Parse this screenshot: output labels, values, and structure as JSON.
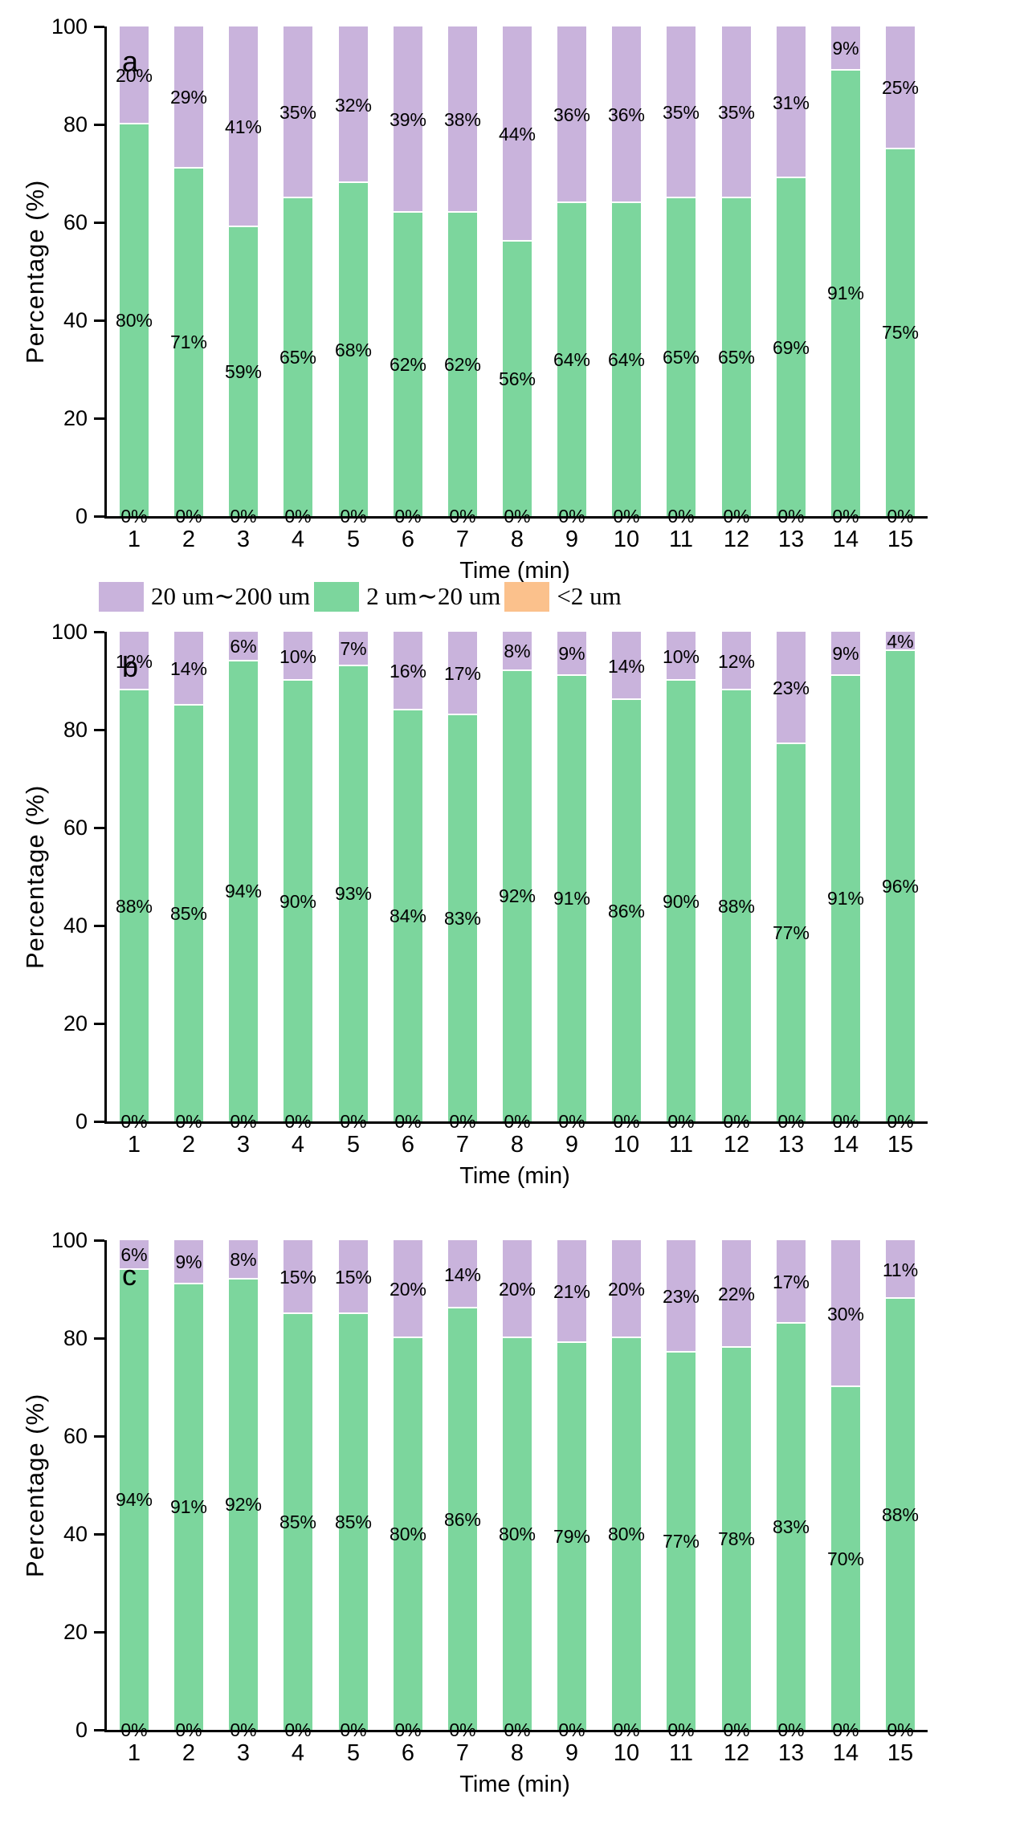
{
  "legend": {
    "items": [
      {
        "name": "range-20-200um",
        "label": "20 um∼200 um",
        "color": "#C9B3DC"
      },
      {
        "name": "range-2-20um",
        "label": "2 um∼20 um",
        "color": "#7CD69D"
      },
      {
        "name": "range-lt-2um",
        "label": "<2 um",
        "color": "#FBC18C"
      }
    ]
  },
  "chart_data": [
    {
      "type": "bar",
      "stacked": true,
      "panel_label": "a",
      "xlabel": "Time (min)",
      "ylabel": "Percentage (%)",
      "ylim": [
        0,
        100
      ],
      "yticks": [
        0,
        20,
        40,
        60,
        80,
        100
      ],
      "categories": [
        "1",
        "2",
        "3",
        "4",
        "5",
        "6",
        "7",
        "8",
        "9",
        "10",
        "11",
        "12",
        "13",
        "14",
        "15"
      ],
      "series": [
        {
          "name": "20 um∼200 um",
          "color": "#C9B3DC",
          "values": [
            20,
            29,
            41,
            35,
            32,
            39,
            38,
            44,
            36,
            36,
            35,
            35,
            31,
            9,
            25
          ]
        },
        {
          "name": "2 um∼20 um",
          "color": "#7CD69D",
          "values": [
            80,
            71,
            59,
            65,
            68,
            62,
            62,
            56,
            64,
            64,
            65,
            65,
            69,
            91,
            75
          ]
        },
        {
          "name": "<2 um",
          "color": "#FBC18C",
          "values": [
            0,
            0,
            0,
            0,
            0,
            0,
            0,
            0,
            0,
            0,
            0,
            0,
            0,
            0,
            0
          ]
        }
      ]
    },
    {
      "type": "bar",
      "stacked": true,
      "panel_label": "b",
      "xlabel": "Time (min)",
      "ylabel": "Percentage (%)",
      "ylim": [
        0,
        100
      ],
      "yticks": [
        0,
        20,
        40,
        60,
        80,
        100
      ],
      "categories": [
        "1",
        "2",
        "3",
        "4",
        "5",
        "6",
        "7",
        "8",
        "9",
        "10",
        "11",
        "12",
        "13",
        "14",
        "15"
      ],
      "series": [
        {
          "name": "20 um∼200 um",
          "color": "#C9B3DC",
          "values": [
            12,
            14,
            6,
            10,
            7,
            16,
            17,
            8,
            9,
            14,
            10,
            12,
            23,
            9,
            4
          ]
        },
        {
          "name": "2 um∼20 um",
          "color": "#7CD69D",
          "values": [
            88,
            85,
            94,
            90,
            93,
            84,
            83,
            92,
            91,
            86,
            90,
            88,
            77,
            91,
            96
          ]
        },
        {
          "name": "<2 um",
          "color": "#FBC18C",
          "values": [
            0,
            0,
            0,
            0,
            0,
            0,
            0,
            0,
            0,
            0,
            0,
            0,
            0,
            0,
            0
          ]
        }
      ]
    },
    {
      "type": "bar",
      "stacked": true,
      "panel_label": "c",
      "xlabel": "Time (min)",
      "ylabel": "Percentage (%)",
      "ylim": [
        0,
        100
      ],
      "yticks": [
        0,
        20,
        40,
        60,
        80,
        100
      ],
      "categories": [
        "1",
        "2",
        "3",
        "4",
        "5",
        "6",
        "7",
        "8",
        "9",
        "10",
        "11",
        "12",
        "13",
        "14",
        "15"
      ],
      "series": [
        {
          "name": "20 um∼200 um",
          "color": "#C9B3DC",
          "values": [
            6,
            9,
            8,
            15,
            15,
            20,
            14,
            20,
            21,
            20,
            23,
            22,
            17,
            30,
            11
          ]
        },
        {
          "name": "2 um∼20 um",
          "color": "#7CD69D",
          "values": [
            94,
            91,
            92,
            85,
            85,
            80,
            86,
            80,
            79,
            80,
            77,
            78,
            83,
            70,
            88
          ]
        },
        {
          "name": "<2 um",
          "color": "#FBC18C",
          "values": [
            0,
            0,
            0,
            0,
            0,
            0,
            0,
            0,
            0,
            0,
            0,
            0,
            0,
            0,
            0
          ]
        }
      ]
    }
  ]
}
